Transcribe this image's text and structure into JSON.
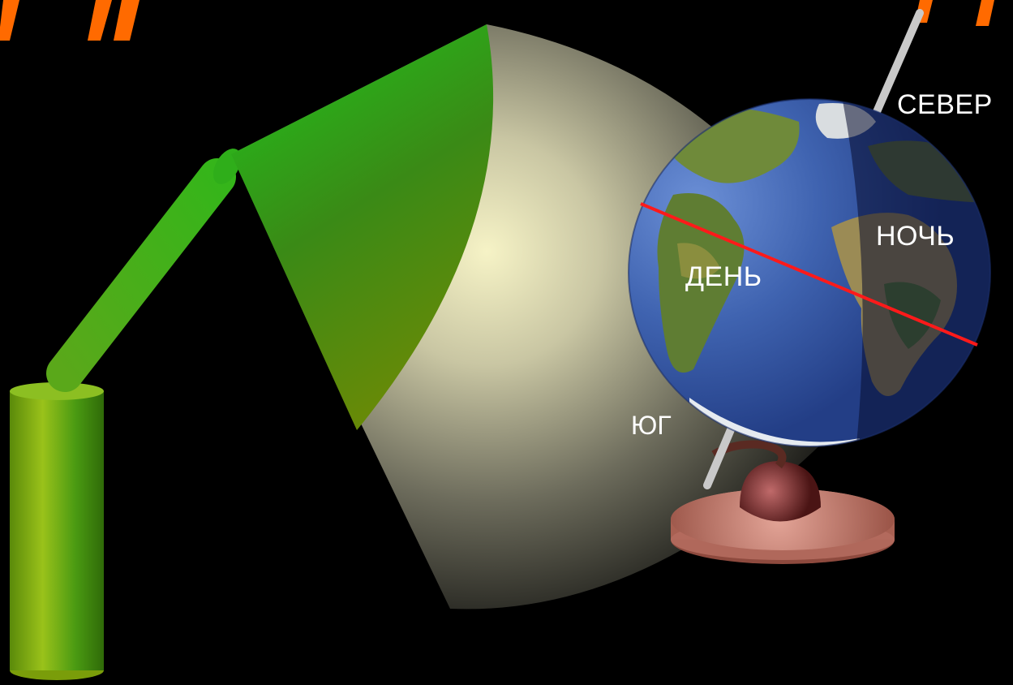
{
  "labels": {
    "north": "СЕВЕР",
    "south": "ЮГ",
    "day": "ДЕНЬ",
    "night": "НОЧЬ"
  },
  "colors": {
    "background": "#000000",
    "lamp_green": "#2ec41c",
    "terminator_line": "#ff1a1a",
    "light_beam_center": "#f4f1c2",
    "ocean_day": "#3f63b0",
    "ocean_night": "#1b2a63",
    "stand": "#c98272",
    "title_accent": "#ff6a00"
  },
  "icons": {
    "lamp": "desk-lamp-icon",
    "globe": "earth-globe-icon"
  }
}
